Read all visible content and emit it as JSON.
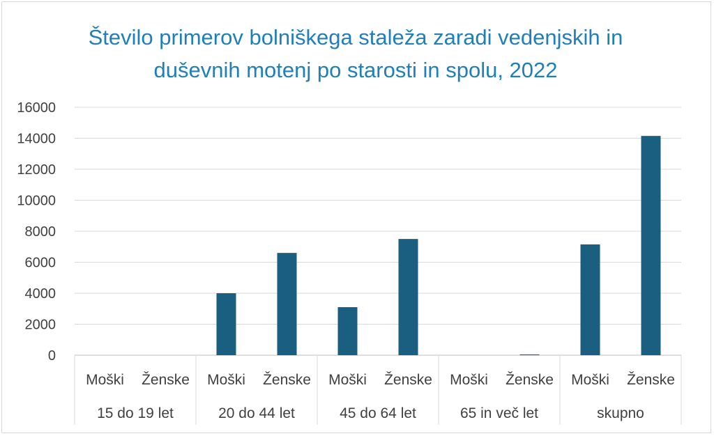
{
  "chart_data": {
    "type": "bar",
    "title": "Število primerov bolniškega staleža zaradi vedenjskih in duševnih motenj po starosti in spolu, 2022",
    "groups": [
      "15 do 19 let",
      "20 do 44 let",
      "45 do 64 let",
      "65 in več let",
      "skupno"
    ],
    "subcategories": [
      "Moški",
      "Ženske"
    ],
    "values": [
      [
        0,
        0
      ],
      [
        4000,
        6600
      ],
      [
        3100,
        7500
      ],
      [
        0,
        50
      ],
      [
        7150,
        14150
      ]
    ],
    "ylim": [
      0,
      16000
    ],
    "yticks": [
      0,
      2000,
      4000,
      6000,
      8000,
      10000,
      12000,
      14000,
      16000
    ],
    "grid": true,
    "bar_color": "#1a5e80",
    "title_color": "#1f7fb8"
  }
}
